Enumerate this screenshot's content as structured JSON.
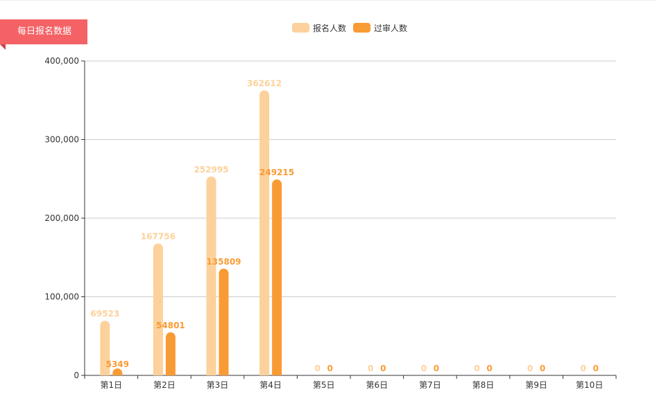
{
  "panel": {
    "title": "每日报名数据"
  },
  "colors": {
    "ribbon": "#f46265",
    "series_1": "#fdd19b",
    "series_2": "#f99b34",
    "grid": "#cccccc",
    "axis": "#333333"
  },
  "chart_data": {
    "type": "bar",
    "title": "",
    "xlabel": "",
    "ylabel": "",
    "ylim": [
      0,
      400000
    ],
    "yticks": [
      0,
      100000,
      200000,
      300000,
      400000
    ],
    "ytick_labels": [
      "0",
      "100,000",
      "200,000",
      "300,000",
      "400,000"
    ],
    "grid": true,
    "legend_position": "top-center",
    "categories": [
      "第1日",
      "第2日",
      "第3日",
      "第4日",
      "第5日",
      "第6日",
      "第7日",
      "第8日",
      "第9日",
      "第10日"
    ],
    "series": [
      {
        "name": "报名人数",
        "color": "#fdd19b",
        "values": [
          69523,
          167756,
          252995,
          362612,
          0,
          0,
          0,
          0,
          0,
          0
        ]
      },
      {
        "name": "过审人数",
        "color": "#f99b34",
        "values": [
          5349,
          54801,
          135809,
          249215,
          0,
          0,
          0,
          0,
          0,
          0
        ]
      }
    ]
  }
}
